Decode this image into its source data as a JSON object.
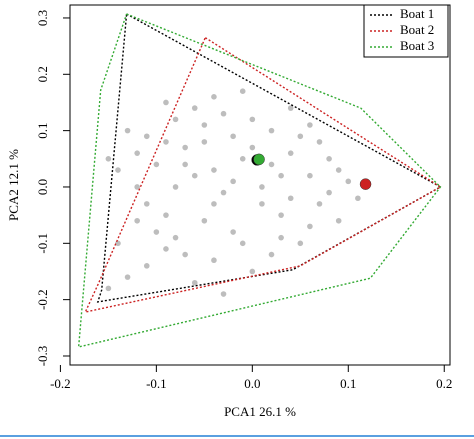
{
  "chart_data": {
    "type": "scatter",
    "xlabel": "PCA1 26.1 %",
    "ylabel": "PCA2 12.1 %",
    "xlim": [
      -0.19,
      0.206
    ],
    "ylim": [
      -0.316,
      0.323
    ],
    "xticks": [
      -0.2,
      -0.1,
      {
        "value": 0,
        "label": "0.0"
      },
      0.1,
      0.2
    ],
    "yticks": [
      -0.3,
      -0.2,
      -0.1,
      {
        "value": 0,
        "label": "0.0"
      },
      0.1,
      0.2,
      0.3
    ],
    "legend": "top-right",
    "points": {
      "color": "#bdbdbd",
      "x": [
        -0.13,
        -0.14,
        -0.12,
        -0.11,
        -0.1,
        -0.09,
        -0.08,
        -0.07,
        -0.06,
        -0.05,
        -0.04,
        -0.03,
        -0.02,
        -0.01,
        0.0,
        0.01,
        0.02,
        0.03,
        0.04,
        0.05,
        0.06,
        0.07,
        0.08,
        0.09,
        0.1,
        -0.15,
        -0.11,
        -0.09,
        -0.06,
        -0.03,
        -0.01,
        0.02,
        0.04,
        -0.12,
        -0.1,
        -0.08,
        -0.07,
        -0.05,
        -0.04,
        -0.02,
        0.0,
        0.01,
        0.03,
        0.05,
        0.06,
        0.08,
        -0.13,
        -0.14,
        -0.09,
        -0.05,
        -0.03,
        -0.01,
        0.02,
        0.04,
        0.07,
        0.11,
        -0.06,
        -0.08,
        -0.02,
        0.0,
        -0.11,
        -0.04,
        0.03,
        -0.07,
        -0.12,
        0.06,
        -0.09,
        0.09,
        -0.15,
        -0.04
      ],
      "y": [
        -0.16,
        -0.1,
        0.0,
        0.09,
        0.04,
        -0.05,
        0.12,
        -0.12,
        0.02,
        0.08,
        -0.03,
        0.13,
        -0.08,
        0.05,
        -0.15,
        0.0,
        0.1,
        -0.05,
        0.06,
        -0.1,
        0.02,
        -0.03,
        0.05,
        -0.06,
        0.01,
        -0.18,
        -0.14,
        0.15,
        -0.17,
        -0.19,
        0.17,
        -0.12,
        0.14,
        0.06,
        -0.08,
        0.0,
        0.07,
        -0.06,
        0.03,
        0.09,
        0.07,
        -0.03,
        0.02,
        0.09,
        -0.07,
        -0.01,
        0.1,
        0.03,
        -0.11,
        0.11,
        -0.01,
        -0.1,
        0.04,
        -0.02,
        0.08,
        -0.02,
        0.14,
        -0.09,
        0.01,
        0.12,
        -0.03,
        -0.13,
        -0.09,
        0.04,
        -0.06,
        0.11,
        0.08,
        0.03,
        0.05,
        0.16
      ]
    },
    "series": [
      {
        "name": "Boat 1",
        "color": "#000000",
        "x": [
          -0.131,
          0.196,
          0.042,
          -0.161,
          -0.157,
          -0.131
        ],
        "y": [
          0.307,
          0.0,
          -0.147,
          -0.204,
          -0.183,
          0.307
        ],
        "centroid": [
          0.005,
          0.048
        ]
      },
      {
        "name": "Boat 2",
        "color": "#cc2222",
        "x": [
          -0.049,
          0.196,
          0.05,
          -0.174,
          -0.16,
          -0.049
        ],
        "y": [
          0.265,
          0.0,
          -0.14,
          -0.222,
          -0.17,
          0.265
        ],
        "centroid": [
          0.118,
          0.005
        ]
      },
      {
        "name": "Boat 3",
        "color": "#33aa33",
        "x": [
          -0.131,
          0.113,
          0.196,
          0.123,
          -0.181,
          -0.158,
          -0.131
        ],
        "y": [
          0.307,
          0.14,
          0.0,
          -0.162,
          -0.284,
          0.172,
          0.307
        ],
        "centroid": [
          0.007,
          0.049
        ]
      }
    ]
  }
}
